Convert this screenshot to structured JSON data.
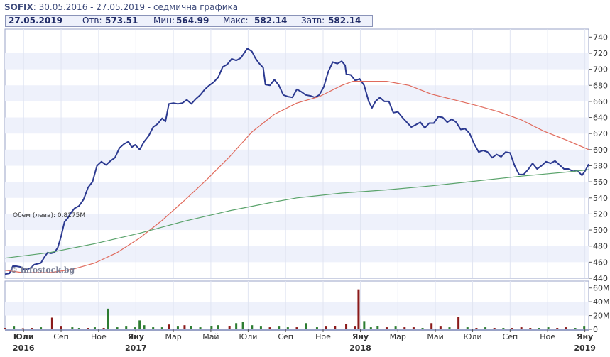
{
  "header": {
    "symbol": "SOFIX",
    "period": ": 30.05.2016 - 27.05.2019 - седмична графика"
  },
  "ohlc": {
    "date": "27.05.2019",
    "open_label": "Отв:",
    "open": "573.51",
    "low_label": "Мин:",
    "low": "564.99",
    "high_label": "Макс:",
    "high": "582.14",
    "close_label": "Затв:",
    "close": "582.14"
  },
  "watermark": "© infostock.bg",
  "volume_label": "Обем (лева): 0.8175M",
  "chart_data": {
    "type": "line",
    "price_axis": {
      "ylim": [
        440,
        750
      ],
      "ticks": [
        440,
        460,
        480,
        500,
        520,
        540,
        560,
        580,
        600,
        620,
        640,
        660,
        680,
        700,
        720,
        740
      ]
    },
    "volume_axis": {
      "ylim": [
        0,
        70
      ],
      "ticks": [
        "0",
        "20M",
        "40M",
        "60M"
      ],
      "tick_values": [
        0,
        20,
        40,
        60
      ]
    },
    "time_axis": {
      "months": [
        "Юли",
        "Сеп",
        "Ное",
        "Яну",
        "Мар",
        "Май",
        "Юли",
        "Сеп",
        "Ное",
        "Яну",
        "Мар",
        "Май",
        "Юли",
        "Сеп",
        "Ное",
        "Яну",
        "Мар",
        "Май"
      ],
      "month_pos": [
        0.083,
        0.25,
        0.417,
        0.583,
        0.75,
        0.917,
        1.083,
        1.25,
        1.417,
        1.583,
        1.75,
        1.917,
        2.083,
        2.25,
        2.417,
        2.583,
        2.75,
        2.917
      ],
      "years": [
        "2016",
        "2017",
        "2018",
        "2019"
      ],
      "year_pos": [
        0.083,
        0.583,
        1.583,
        2.583
      ]
    },
    "series": [
      {
        "role": "price",
        "color": "#2b3990",
        "points": [
          [
            0,
            445
          ],
          [
            0.02,
            446
          ],
          [
            0.035,
            455
          ],
          [
            0.05,
            455
          ],
          [
            0.07,
            454
          ],
          [
            0.085,
            451
          ],
          [
            0.1,
            451
          ],
          [
            0.115,
            453
          ],
          [
            0.13,
            457
          ],
          [
            0.145,
            458
          ],
          [
            0.16,
            459
          ],
          [
            0.175,
            466
          ],
          [
            0.19,
            472
          ],
          [
            0.205,
            471
          ],
          [
            0.22,
            472
          ],
          [
            0.235,
            478
          ],
          [
            0.25,
            492
          ],
          [
            0.265,
            510
          ],
          [
            0.28,
            515
          ],
          [
            0.295,
            522
          ],
          [
            0.31,
            527
          ],
          [
            0.33,
            530
          ],
          [
            0.35,
            538
          ],
          [
            0.37,
            553
          ],
          [
            0.39,
            560
          ],
          [
            0.41,
            580
          ],
          [
            0.43,
            585
          ],
          [
            0.45,
            581
          ],
          [
            0.47,
            586
          ],
          [
            0.49,
            590
          ],
          [
            0.51,
            602
          ],
          [
            0.53,
            607
          ],
          [
            0.55,
            610
          ],
          [
            0.565,
            603
          ],
          [
            0.58,
            606
          ],
          [
            0.6,
            600
          ],
          [
            0.62,
            610
          ],
          [
            0.64,
            617
          ],
          [
            0.66,
            628
          ],
          [
            0.68,
            632
          ],
          [
            0.7,
            639
          ],
          [
            0.715,
            635
          ],
          [
            0.73,
            657
          ],
          [
            0.75,
            658
          ],
          [
            0.77,
            657
          ],
          [
            0.79,
            658
          ],
          [
            0.81,
            662
          ],
          [
            0.83,
            657
          ],
          [
            0.85,
            663
          ],
          [
            0.87,
            668
          ],
          [
            0.89,
            675
          ],
          [
            0.91,
            680
          ],
          [
            0.93,
            684
          ],
          [
            0.95,
            690
          ],
          [
            0.97,
            703
          ],
          [
            0.99,
            706
          ],
          [
            1.01,
            713
          ],
          [
            1.03,
            711
          ],
          [
            1.05,
            714
          ],
          [
            1.065,
            720
          ],
          [
            1.08,
            726
          ],
          [
            1.1,
            722
          ],
          [
            1.115,
            714
          ],
          [
            1.13,
            708
          ],
          [
            1.15,
            702
          ],
          [
            1.16,
            681
          ],
          [
            1.18,
            680
          ],
          [
            1.2,
            687
          ],
          [
            1.22,
            680
          ],
          [
            1.24,
            668
          ],
          [
            1.26,
            666
          ],
          [
            1.28,
            665
          ],
          [
            1.3,
            675
          ],
          [
            1.32,
            672
          ],
          [
            1.34,
            668
          ],
          [
            1.36,
            667
          ],
          [
            1.38,
            665
          ],
          [
            1.4,
            668
          ],
          [
            1.42,
            678
          ],
          [
            1.44,
            697
          ],
          [
            1.46,
            709
          ],
          [
            1.48,
            707
          ],
          [
            1.5,
            710
          ],
          [
            1.515,
            705
          ],
          [
            1.52,
            694
          ],
          [
            1.54,
            693
          ],
          [
            1.56,
            686
          ],
          [
            1.58,
            688
          ],
          [
            1.6,
            680
          ],
          [
            1.62,
            660
          ],
          [
            1.635,
            652
          ],
          [
            1.65,
            660
          ],
          [
            1.67,
            665
          ],
          [
            1.69,
            660
          ],
          [
            1.71,
            660
          ],
          [
            1.73,
            646
          ],
          [
            1.75,
            647
          ],
          [
            1.77,
            640
          ],
          [
            1.79,
            634
          ],
          [
            1.81,
            628
          ],
          [
            1.83,
            631
          ],
          [
            1.85,
            634
          ],
          [
            1.87,
            627
          ],
          [
            1.89,
            633
          ],
          [
            1.91,
            633
          ],
          [
            1.93,
            641
          ],
          [
            1.95,
            640
          ],
          [
            1.97,
            634
          ],
          [
            1.99,
            638
          ],
          [
            2.01,
            634
          ],
          [
            2.03,
            625
          ],
          [
            2.05,
            626
          ],
          [
            2.07,
            620
          ],
          [
            2.09,
            607
          ],
          [
            2.11,
            597
          ],
          [
            2.13,
            599
          ],
          [
            2.15,
            597
          ],
          [
            2.17,
            590
          ],
          [
            2.19,
            594
          ],
          [
            2.21,
            591
          ],
          [
            2.23,
            597
          ],
          [
            2.25,
            596
          ],
          [
            2.27,
            580
          ],
          [
            2.29,
            569
          ],
          [
            2.31,
            569
          ],
          [
            2.33,
            575
          ],
          [
            2.35,
            583
          ],
          [
            2.37,
            576
          ],
          [
            2.39,
            580
          ],
          [
            2.41,
            585
          ],
          [
            2.43,
            583
          ],
          [
            2.45,
            586
          ],
          [
            2.47,
            581
          ],
          [
            2.49,
            576
          ],
          [
            2.51,
            576
          ],
          [
            2.53,
            573
          ],
          [
            2.55,
            574
          ],
          [
            2.57,
            568
          ],
          [
            2.585,
            574
          ],
          [
            2.6,
            582
          ]
        ]
      },
      {
        "role": "ma_long",
        "color": "#e06a5c",
        "points": [
          [
            0,
            450
          ],
          [
            0.08,
            447
          ],
          [
            0.2,
            447
          ],
          [
            0.3,
            451
          ],
          [
            0.4,
            459
          ],
          [
            0.5,
            472
          ],
          [
            0.6,
            490
          ],
          [
            0.7,
            512
          ],
          [
            0.8,
            537
          ],
          [
            0.9,
            563
          ],
          [
            1.0,
            591
          ],
          [
            1.1,
            622
          ],
          [
            1.2,
            644
          ],
          [
            1.3,
            658
          ],
          [
            1.4,
            666
          ],
          [
            1.5,
            680
          ],
          [
            1.55,
            685
          ],
          [
            1.7,
            685
          ],
          [
            1.8,
            680
          ],
          [
            1.9,
            669
          ],
          [
            2.0,
            662
          ],
          [
            2.1,
            655
          ],
          [
            2.2,
            647
          ],
          [
            2.3,
            637
          ],
          [
            2.4,
            623
          ],
          [
            2.5,
            612
          ],
          [
            2.6,
            600
          ]
        ]
      },
      {
        "role": "ma_short",
        "color": "#5aa36b",
        "points": [
          [
            0,
            465
          ],
          [
            0.2,
            472
          ],
          [
            0.4,
            483
          ],
          [
            0.6,
            496
          ],
          [
            0.8,
            511
          ],
          [
            1.0,
            524
          ],
          [
            1.2,
            535
          ],
          [
            1.3,
            540
          ],
          [
            1.5,
            546
          ],
          [
            1.7,
            550
          ],
          [
            1.9,
            555
          ],
          [
            2.1,
            561
          ],
          [
            2.3,
            567
          ],
          [
            2.5,
            572
          ],
          [
            2.6,
            575
          ]
        ]
      }
    ],
    "volume": [
      {
        "t": 0.0,
        "v": 2,
        "c": "#8b1a1a"
      },
      {
        "t": 0.04,
        "v": 4,
        "c": "#2e7d32"
      },
      {
        "t": 0.08,
        "v": 1.5,
        "c": "#8b1a1a"
      },
      {
        "t": 0.12,
        "v": 2,
        "c": "#8b1a1a"
      },
      {
        "t": 0.16,
        "v": 3,
        "c": "#2e7d32"
      },
      {
        "t": 0.21,
        "v": 17,
        "c": "#8b1a1a"
      },
      {
        "t": 0.25,
        "v": 4,
        "c": "#8b1a1a"
      },
      {
        "t": 0.3,
        "v": 3,
        "c": "#2e7d32"
      },
      {
        "t": 0.33,
        "v": 2,
        "c": "#2e7d32"
      },
      {
        "t": 0.37,
        "v": 2,
        "c": "#8b1a1a"
      },
      {
        "t": 0.4,
        "v": 3,
        "c": "#2e7d32"
      },
      {
        "t": 0.44,
        "v": 2,
        "c": "#8b1a1a"
      },
      {
        "t": 0.46,
        "v": 30,
        "c": "#2e7d32"
      },
      {
        "t": 0.5,
        "v": 3,
        "c": "#2e7d32"
      },
      {
        "t": 0.54,
        "v": 4,
        "c": "#2e7d32"
      },
      {
        "t": 0.58,
        "v": 3,
        "c": "#2e7d32"
      },
      {
        "t": 0.6,
        "v": 13,
        "c": "#2e7d32"
      },
      {
        "t": 0.62,
        "v": 6,
        "c": "#2e7d32"
      },
      {
        "t": 0.66,
        "v": 3,
        "c": "#2e7d32"
      },
      {
        "t": 0.7,
        "v": 3,
        "c": "#2e7d32"
      },
      {
        "t": 0.73,
        "v": 7,
        "c": "#8b1a1a"
      },
      {
        "t": 0.77,
        "v": 4,
        "c": "#2e7d32"
      },
      {
        "t": 0.8,
        "v": 6,
        "c": "#8b1a1a"
      },
      {
        "t": 0.83,
        "v": 5,
        "c": "#2e7d32"
      },
      {
        "t": 0.87,
        "v": 3,
        "c": "#2e7d32"
      },
      {
        "t": 0.92,
        "v": 5,
        "c": "#2e7d32"
      },
      {
        "t": 0.95,
        "v": 6,
        "c": "#2e7d32"
      },
      {
        "t": 1.0,
        "v": 5,
        "c": "#8b1a1a"
      },
      {
        "t": 1.03,
        "v": 9,
        "c": "#2e7d32"
      },
      {
        "t": 1.06,
        "v": 11,
        "c": "#2e7d32"
      },
      {
        "t": 1.1,
        "v": 6,
        "c": "#2e7d32"
      },
      {
        "t": 1.14,
        "v": 4,
        "c": "#2e7d32"
      },
      {
        "t": 1.18,
        "v": 3,
        "c": "#8b1a1a"
      },
      {
        "t": 1.22,
        "v": 4,
        "c": "#2e7d32"
      },
      {
        "t": 1.26,
        "v": 3,
        "c": "#2e7d32"
      },
      {
        "t": 1.3,
        "v": 3,
        "c": "#8b1a1a"
      },
      {
        "t": 1.34,
        "v": 9,
        "c": "#2e7d32"
      },
      {
        "t": 1.39,
        "v": 3,
        "c": "#2e7d32"
      },
      {
        "t": 1.43,
        "v": 4,
        "c": "#8b1a1a"
      },
      {
        "t": 1.47,
        "v": 5,
        "c": "#8b1a1a"
      },
      {
        "t": 1.52,
        "v": 8,
        "c": "#8b1a1a"
      },
      {
        "t": 1.56,
        "v": 4,
        "c": "#8b1a1a"
      },
      {
        "t": 1.575,
        "v": 58,
        "c": "#8b1a1a"
      },
      {
        "t": 1.6,
        "v": 12,
        "c": "#2e7d32"
      },
      {
        "t": 1.63,
        "v": 3,
        "c": "#2e7d32"
      },
      {
        "t": 1.66,
        "v": 5,
        "c": "#2e7d32"
      },
      {
        "t": 1.7,
        "v": 3,
        "c": "#8b1a1a"
      },
      {
        "t": 1.74,
        "v": 4,
        "c": "#2e7d32"
      },
      {
        "t": 1.78,
        "v": 3,
        "c": "#8b1a1a"
      },
      {
        "t": 1.82,
        "v": 3,
        "c": "#8b1a1a"
      },
      {
        "t": 1.86,
        "v": 2,
        "c": "#2e7d32"
      },
      {
        "t": 1.9,
        "v": 9,
        "c": "#8b1a1a"
      },
      {
        "t": 1.94,
        "v": 4,
        "c": "#8b1a1a"
      },
      {
        "t": 1.98,
        "v": 3,
        "c": "#2e7d32"
      },
      {
        "t": 2.02,
        "v": 18,
        "c": "#8b1a1a"
      },
      {
        "t": 2.06,
        "v": 3,
        "c": "#2e7d32"
      },
      {
        "t": 2.1,
        "v": 2,
        "c": "#8b1a1a"
      },
      {
        "t": 2.14,
        "v": 3,
        "c": "#2e7d32"
      },
      {
        "t": 2.18,
        "v": 2,
        "c": "#8b1a1a"
      },
      {
        "t": 2.22,
        "v": 2,
        "c": "#2e7d32"
      },
      {
        "t": 2.26,
        "v": 2,
        "c": "#8b1a1a"
      },
      {
        "t": 2.3,
        "v": 3,
        "c": "#8b1a1a"
      },
      {
        "t": 2.34,
        "v": 2,
        "c": "#8b1a1a"
      },
      {
        "t": 2.38,
        "v": 2,
        "c": "#2e7d32"
      },
      {
        "t": 2.42,
        "v": 3,
        "c": "#2e7d32"
      },
      {
        "t": 2.46,
        "v": 2,
        "c": "#8b1a1a"
      },
      {
        "t": 2.5,
        "v": 3,
        "c": "#8b1a1a"
      },
      {
        "t": 2.54,
        "v": 2,
        "c": "#2e7d32"
      },
      {
        "t": 2.58,
        "v": 4,
        "c": "#2e7d32"
      },
      {
        "t": 2.6,
        "v": 1,
        "c": "#2e7d32"
      }
    ]
  }
}
